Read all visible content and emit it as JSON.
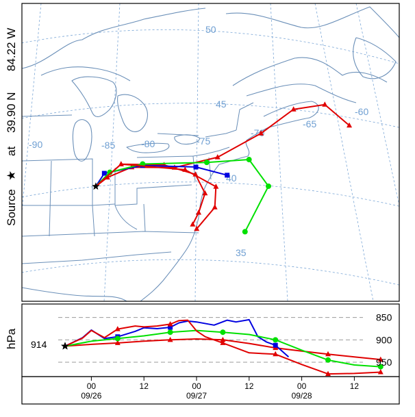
{
  "source_label": {
    "prefix": "Source",
    "star": "★",
    "at": "at",
    "lat": "39.90 N",
    "lon": "84.22 W"
  },
  "map": {
    "lat_labels": [
      "50",
      "45",
      "40",
      "35"
    ],
    "lon_labels": [
      "-90",
      "-85",
      "-80",
      "-75",
      "-70",
      "-65",
      "-60"
    ]
  },
  "chart_data": [
    {
      "type": "line",
      "title": "",
      "xlabel": "",
      "ylabel": "",
      "series": [
        {
          "name": "",
          "color": "#e00000",
          "marker": "triangle",
          "path": [
            [
              -84.22,
              39.9
            ],
            [
              -83.2,
              40.8
            ],
            [
              -81.0,
              42.0
            ],
            [
              -77.0,
              42.5
            ],
            [
              -73.0,
              43.2
            ],
            [
              -69.0,
              44.3
            ],
            [
              -66.0,
              45.2
            ],
            [
              -63.0,
              44.5
            ],
            [
              -60.5,
              42.0
            ]
          ]
        },
        {
          "name": "",
          "color": "#e00000",
          "marker": "triangle",
          "path": [
            [
              -84.22,
              39.9
            ],
            [
              -82.0,
              42.0
            ],
            [
              -78.0,
              42.6
            ],
            [
              -75.0,
              42.1
            ],
            [
              -74.0,
              40.8
            ],
            [
              -74.5,
              39.5
            ],
            [
              -75.0,
              38.7
            ]
          ]
        },
        {
          "name": "",
          "color": "#0000e0",
          "marker": "square",
          "path": [
            [
              -84.22,
              39.9
            ],
            [
              -83.5,
              41.0
            ],
            [
              -80.0,
              42.3
            ],
            [
              -75.0,
              42.6
            ],
            [
              -72.0,
              41.9
            ]
          ]
        },
        {
          "name": "",
          "color": "#00e000",
          "marker": "circle",
          "path": [
            [
              -84.22,
              39.9
            ],
            [
              -83.0,
              41.2
            ],
            [
              -80.0,
              42.4
            ],
            [
              -74.0,
              42.9
            ],
            [
              -70.0,
              42.7
            ],
            [
              -68.0,
              40.5
            ],
            [
              -70.0,
              37.8
            ]
          ]
        },
        {
          "name": "",
          "color": "#e00000",
          "marker": "triangle",
          "path": [
            [
              -84.22,
              39.9
            ],
            [
              -82.0,
              42.0
            ],
            [
              -76.0,
              42.4
            ],
            [
              -73.0,
              41.2
            ],
            [
              -73.0,
              39.8
            ],
            [
              -74.6,
              38.4
            ]
          ]
        }
      ]
    },
    {
      "type": "line",
      "title": "",
      "xlabel": "",
      "ylabel": "hPa",
      "ylim": [
        982,
        820
      ],
      "yticks": [
        850,
        900,
        950
      ],
      "start_value": "914",
      "x_tick_labels": [
        "00",
        "12",
        "00",
        "12",
        "00",
        "12"
      ],
      "date_labels": [
        "09/26",
        "09/27",
        "09/28"
      ],
      "series": [
        {
          "name": "",
          "color": "#e00000",
          "marker": "triangle",
          "x": [
            0,
            6,
            12,
            18,
            24,
            30,
            36,
            42,
            48,
            54,
            60,
            66,
            72
          ],
          "y": [
            914,
            910,
            907,
            903,
            900,
            898,
            900,
            908,
            918,
            925,
            932,
            938,
            944
          ]
        },
        {
          "name": "",
          "color": "#0000e0",
          "marker": "square",
          "x": [
            0,
            4,
            6,
            9,
            12,
            16,
            18,
            21,
            24,
            26,
            28,
            30,
            34,
            37,
            39,
            42,
            44,
            46,
            48,
            51
          ],
          "y": [
            914,
            895,
            878,
            897,
            893,
            881,
            873,
            875,
            872,
            862,
            858,
            860,
            867,
            856,
            860,
            855,
            893,
            905,
            912,
            938
          ]
        },
        {
          "name": "",
          "color": "#00e000",
          "marker": "circle",
          "x": [
            0,
            6,
            12,
            18,
            24,
            30,
            36,
            42,
            48,
            54,
            60,
            66,
            72
          ],
          "y": [
            914,
            903,
            897,
            891,
            883,
            879,
            883,
            888,
            900,
            923,
            945,
            956,
            960
          ]
        },
        {
          "name": "",
          "color": "#e00000",
          "marker": "triangle",
          "x": [
            0,
            4,
            6,
            9,
            12,
            16,
            18,
            21,
            24,
            26,
            28,
            30,
            32,
            36,
            42,
            48,
            54,
            60,
            66,
            72
          ],
          "y": [
            914,
            896,
            879,
            895,
            876,
            869,
            871,
            869,
            865,
            857,
            856,
            880,
            893,
            907,
            929,
            932,
            955,
            976,
            975,
            972
          ]
        }
      ]
    }
  ]
}
